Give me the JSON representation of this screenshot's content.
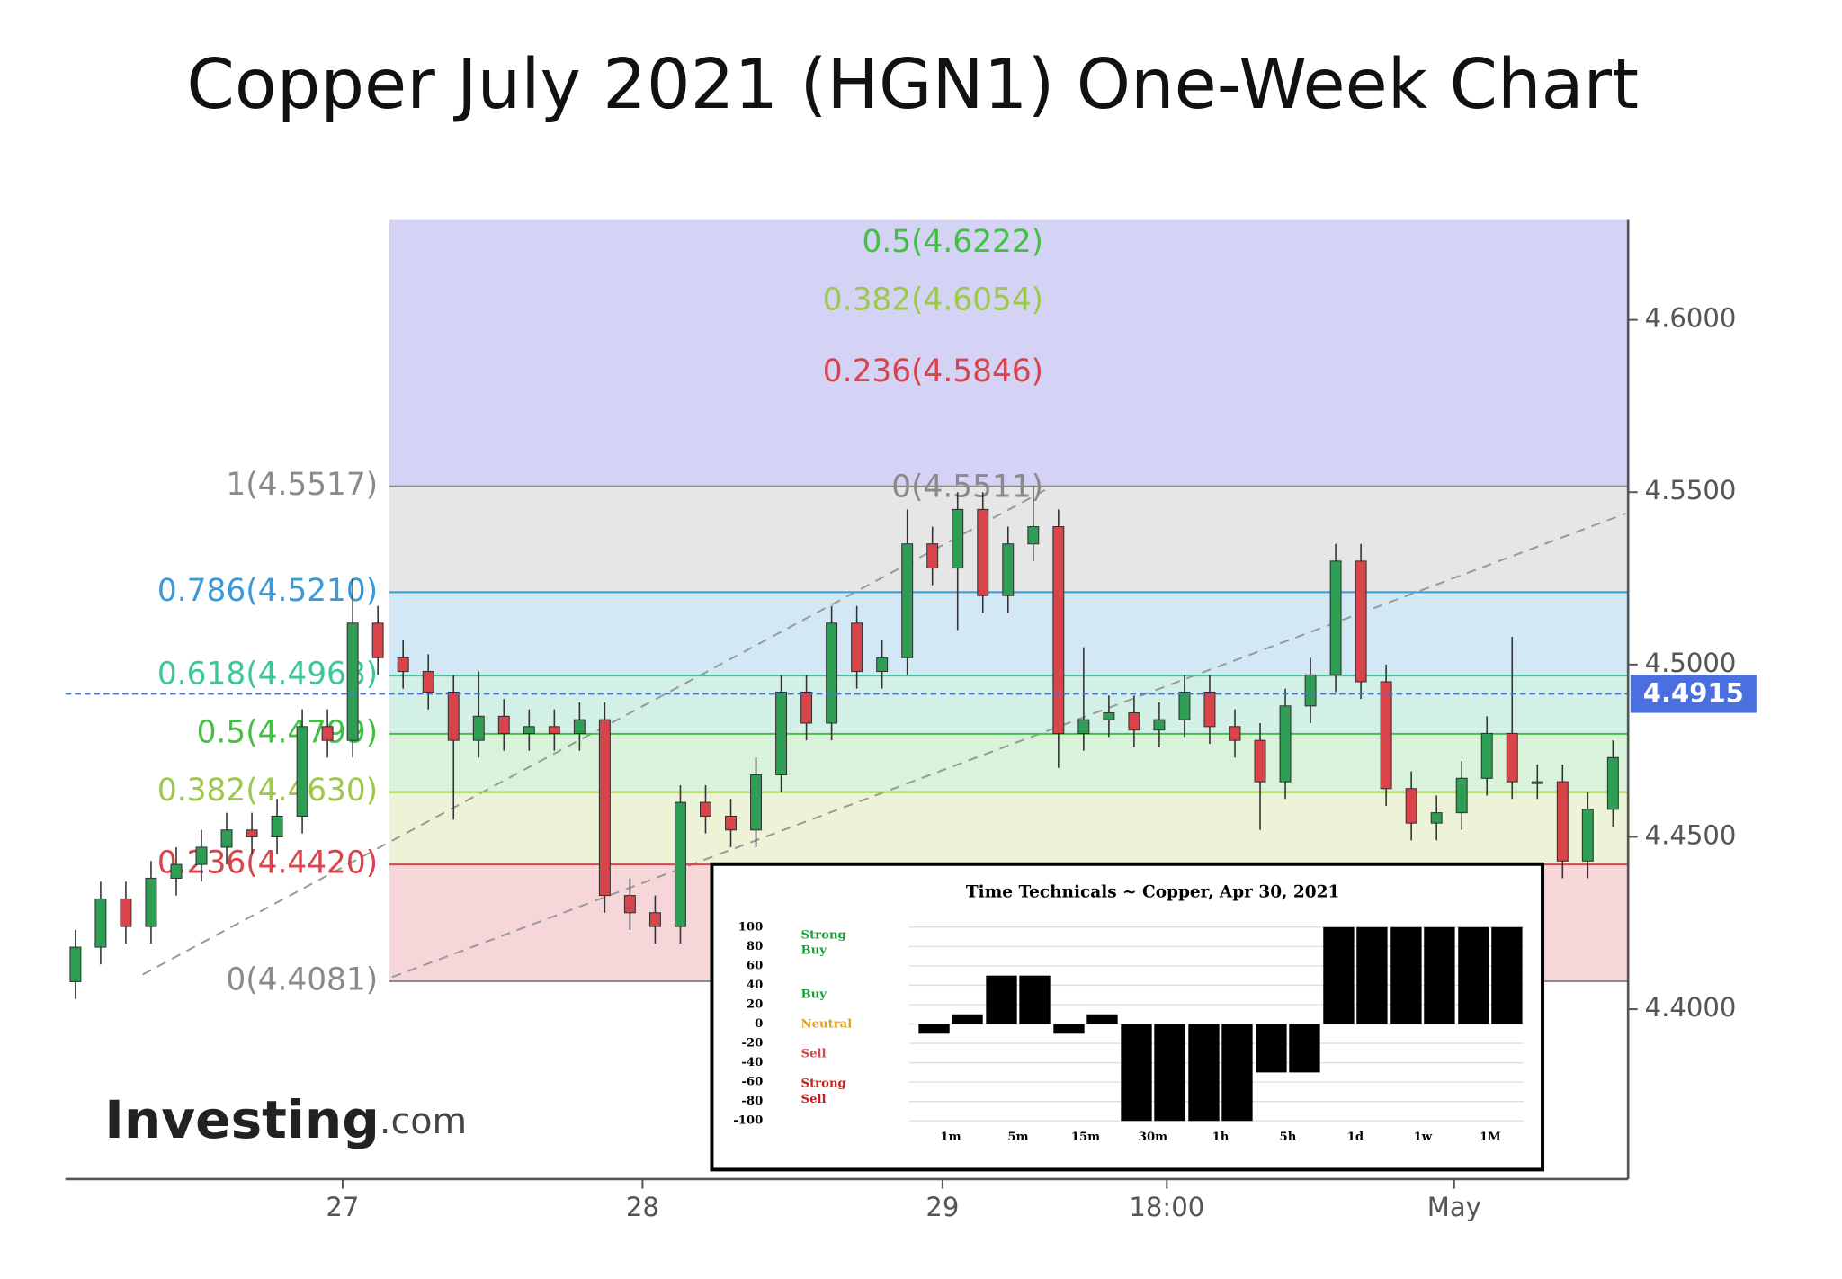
{
  "chart_data": [
    {
      "type": "candlestick",
      "title": "Copper July 2021 (HGN1) One-Week Chart",
      "x": [
        0,
        1,
        2,
        3,
        4,
        5,
        6,
        7,
        8,
        9,
        10,
        11,
        12,
        13,
        14,
        15,
        16,
        17,
        18,
        19,
        20,
        21,
        22,
        23,
        24,
        25,
        26,
        27,
        28,
        29,
        30,
        31,
        32,
        33,
        34,
        35,
        36,
        37,
        38,
        39,
        40,
        41,
        42,
        43,
        44,
        45,
        46,
        47,
        48,
        49,
        50,
        51,
        52,
        53,
        54,
        55,
        56,
        57,
        58,
        59,
        60,
        61
      ],
      "xlim": [
        -0.4,
        61.6
      ],
      "xticks": [
        {
          "value": 10.6,
          "label": "27"
        },
        {
          "value": 22.5,
          "label": "28"
        },
        {
          "value": 34.4,
          "label": "29"
        },
        {
          "value": 43.3,
          "label": "18:00"
        },
        {
          "value": 54.7,
          "label": "May"
        }
      ],
      "ylim": [
        4.3507,
        4.629
      ],
      "yticks": [
        {
          "value": 4.4,
          "label": "4.4000"
        },
        {
          "value": 4.45,
          "label": "4.4500"
        },
        {
          "value": 4.5,
          "label": "4.5000"
        },
        {
          "value": 4.55,
          "label": "4.5500"
        },
        {
          "value": 4.6,
          "label": "4.6000"
        }
      ],
      "open": [
        4.408,
        4.418,
        4.432,
        4.424,
        4.438,
        4.442,
        4.447,
        4.452,
        4.45,
        4.456,
        4.482,
        4.478,
        4.512,
        4.502,
        4.498,
        4.492,
        4.478,
        4.485,
        4.48,
        4.482,
        4.48,
        4.484,
        4.433,
        4.428,
        4.424,
        4.46,
        4.456,
        4.452,
        4.468,
        4.492,
        4.483,
        4.512,
        4.498,
        4.502,
        4.535,
        4.528,
        4.545,
        4.52,
        4.535,
        4.54,
        4.48,
        4.484,
        4.486,
        4.481,
        4.484,
        4.492,
        4.482,
        4.478,
        4.466,
        4.488,
        4.497,
        4.53,
        4.495,
        4.464,
        4.454,
        4.457,
        4.467,
        4.48,
        4.466,
        4.466,
        4.443,
        4.458
      ],
      "high": [
        4.423,
        4.437,
        4.437,
        4.443,
        4.447,
        4.452,
        4.457,
        4.457,
        4.461,
        4.487,
        4.487,
        4.525,
        4.517,
        4.507,
        4.503,
        4.497,
        4.498,
        4.49,
        4.487,
        4.487,
        4.489,
        4.489,
        4.438,
        4.433,
        4.465,
        4.465,
        4.461,
        4.473,
        4.497,
        4.497,
        4.517,
        4.517,
        4.507,
        4.545,
        4.54,
        4.55,
        4.55,
        4.54,
        4.552,
        4.545,
        4.505,
        4.491,
        4.491,
        4.489,
        4.497,
        4.497,
        4.487,
        4.483,
        4.493,
        4.502,
        4.535,
        4.535,
        4.5,
        4.469,
        4.462,
        4.472,
        4.485,
        4.508,
        4.471,
        4.471,
        4.463,
        4.478
      ],
      "low": [
        4.403,
        4.413,
        4.419,
        4.419,
        4.433,
        4.437,
        4.442,
        4.445,
        4.445,
        4.451,
        4.473,
        4.473,
        4.497,
        4.493,
        4.487,
        4.455,
        4.473,
        4.475,
        4.475,
        4.475,
        4.475,
        4.428,
        4.423,
        4.419,
        4.419,
        4.451,
        4.447,
        4.447,
        4.463,
        4.478,
        4.478,
        4.493,
        4.493,
        4.497,
        4.523,
        4.51,
        4.515,
        4.515,
        4.53,
        4.47,
        4.475,
        4.479,
        4.476,
        4.476,
        4.479,
        4.477,
        4.473,
        4.452,
        4.461,
        4.483,
        4.492,
        4.49,
        4.459,
        4.449,
        4.449,
        4.452,
        4.462,
        4.461,
        4.461,
        4.438,
        4.438,
        4.453
      ],
      "close": [
        4.418,
        4.432,
        4.424,
        4.438,
        4.442,
        4.447,
        4.452,
        4.45,
        4.456,
        4.482,
        4.478,
        4.512,
        4.502,
        4.498,
        4.492,
        4.478,
        4.485,
        4.48,
        4.482,
        4.48,
        4.484,
        4.433,
        4.428,
        4.424,
        4.46,
        4.456,
        4.452,
        4.468,
        4.492,
        4.483,
        4.512,
        4.498,
        4.502,
        4.535,
        4.528,
        4.545,
        4.52,
        4.535,
        4.54,
        4.48,
        4.484,
        4.486,
        4.481,
        4.484,
        4.492,
        4.482,
        4.478,
        4.466,
        4.488,
        4.497,
        4.53,
        4.495,
        4.464,
        4.454,
        4.457,
        4.467,
        4.48,
        4.466,
        4.466,
        4.443,
        4.458,
        4.473
      ],
      "up_color": "#2e9e55",
      "down_color": "#d9434a",
      "last_price": 4.4915,
      "last_price_color": "#4a6fe0",
      "fib_start": 12.45,
      "fib_levels": [
        {
          "label": "1(4.5517)",
          "value": 4.5517,
          "color": "#8a8a8a",
          "fill": "#e6e6e6"
        },
        {
          "label": "0.786(4.5210)",
          "value": 4.521,
          "color": "#3a9ad9",
          "fill": "#d3e8f5"
        },
        {
          "label": "0.618(4.4968)",
          "value": 4.4968,
          "color": "#3cc79a",
          "fill": "#d2f0e6"
        },
        {
          "label": "0.5(4.4799)",
          "value": 4.4799,
          "color": "#43c043",
          "fill": "#d9f2d9"
        },
        {
          "label": "0.382(4.4630)",
          "value": 4.463,
          "color": "#9cc94a",
          "fill": "#ecf3d6"
        },
        {
          "label": "0.236(4.4420)",
          "value": 4.442,
          "color": "#d9434a",
          "fill": "#f6d6d8"
        },
        {
          "label": "0(4.4081)",
          "value": 4.4081,
          "color": "#8a8a8a"
        }
      ],
      "fib_top_fill": "#d5d3f5",
      "fib_extension": [
        {
          "label": "0(4.5511)",
          "value": 4.5511,
          "color": "#8a8a8a"
        },
        {
          "label": "0.236(4.5846)",
          "value": 4.5846,
          "color": "#d9434a"
        },
        {
          "label": "0.382(4.6054)",
          "value": 4.6054,
          "color": "#9cc94a"
        },
        {
          "label": "0.5(4.6222)",
          "value": 4.6222,
          "color": "#43c043"
        }
      ],
      "watermark": [
        "Investing",
        ".com"
      ]
    },
    {
      "type": "bar",
      "title": "Time Technicals ~ Copper, Apr 30, 2021",
      "categories": [
        "1m",
        "5m",
        "15m",
        "30m",
        "1h",
        "5h",
        "1d",
        "1w",
        "1M"
      ],
      "series": [
        {
          "color": "#000000",
          "values": [
            -10,
            50,
            -10,
            -100,
            -100,
            -50,
            100,
            100,
            100
          ]
        },
        {
          "color": "#000000",
          "values": [
            10,
            50,
            10,
            -100,
            -100,
            -50,
            100,
            100,
            100
          ]
        }
      ],
      "ylim": [
        -100,
        100
      ],
      "yticks": [
        100,
        80,
        60,
        40,
        20,
        0,
        -20,
        -40,
        -60,
        -80,
        -100
      ],
      "grid": true,
      "zones": [
        {
          "lines": [
            "Strong",
            "Buy"
          ],
          "color": "#1a9e3a"
        },
        {
          "lines": [
            "Buy"
          ],
          "color": "#1a9e3a"
        },
        {
          "lines": [
            "Neutral"
          ],
          "color": "#e0a020"
        },
        {
          "lines": [
            "Sell"
          ],
          "color": "#d9434a"
        },
        {
          "lines": [
            "Strong",
            "Sell"
          ],
          "color": "#c81e1e"
        }
      ]
    }
  ]
}
